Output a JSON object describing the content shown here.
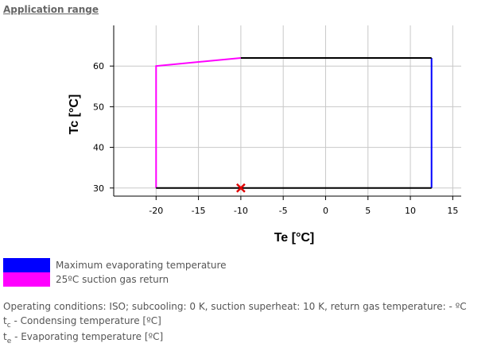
{
  "section": {
    "title": "Application range"
  },
  "chart_data": {
    "type": "line",
    "xlabel": "Te [°C]",
    "ylabel": "Tc [°C]",
    "xlim": [
      -25,
      16
    ],
    "ylim": [
      28,
      70
    ],
    "xticks": [
      -20,
      -15,
      -10,
      -5,
      0,
      5,
      10,
      15
    ],
    "yticks": [
      30,
      40,
      50,
      60
    ],
    "grid": true,
    "legend_position": "bottom-left",
    "series": [
      {
        "name": "Maximum evaporating temperature",
        "color": "#0000ff",
        "points": [
          [
            12.5,
            30
          ],
          [
            12.5,
            62
          ]
        ]
      },
      {
        "name": "25ºC suction gas return",
        "color": "#ff00ff",
        "points": [
          [
            -20,
            30
          ],
          [
            -20,
            60
          ],
          [
            -10,
            62
          ]
        ]
      },
      {
        "name": "",
        "color": "#000000",
        "points": [
          [
            -10,
            62
          ],
          [
            12.5,
            62
          ]
        ]
      },
      {
        "name": "",
        "color": "#000000",
        "points": [
          [
            -20,
            30
          ],
          [
            12.5,
            30
          ]
        ]
      }
    ],
    "marker": {
      "x": -10,
      "y": 30,
      "symbol": "x",
      "color": "#e00000"
    }
  },
  "legend": [
    {
      "label": "Maximum evaporating temperature",
      "color": "#0000ff"
    },
    {
      "label": "25ºC suction gas return",
      "color": "#ff00ff"
    }
  ],
  "notes": {
    "conditions": "Operating conditions: ISO; subcooling: 0 K, suction superheat: 10 K, return gas temperature: - ºC",
    "tc_symbol": "t",
    "tc_sub": "c",
    "tc_text": " - Condensing temperature [ºC]",
    "te_symbol": "t",
    "te_sub": "e",
    "te_text": " - Evaporating temperature [ºC]"
  }
}
